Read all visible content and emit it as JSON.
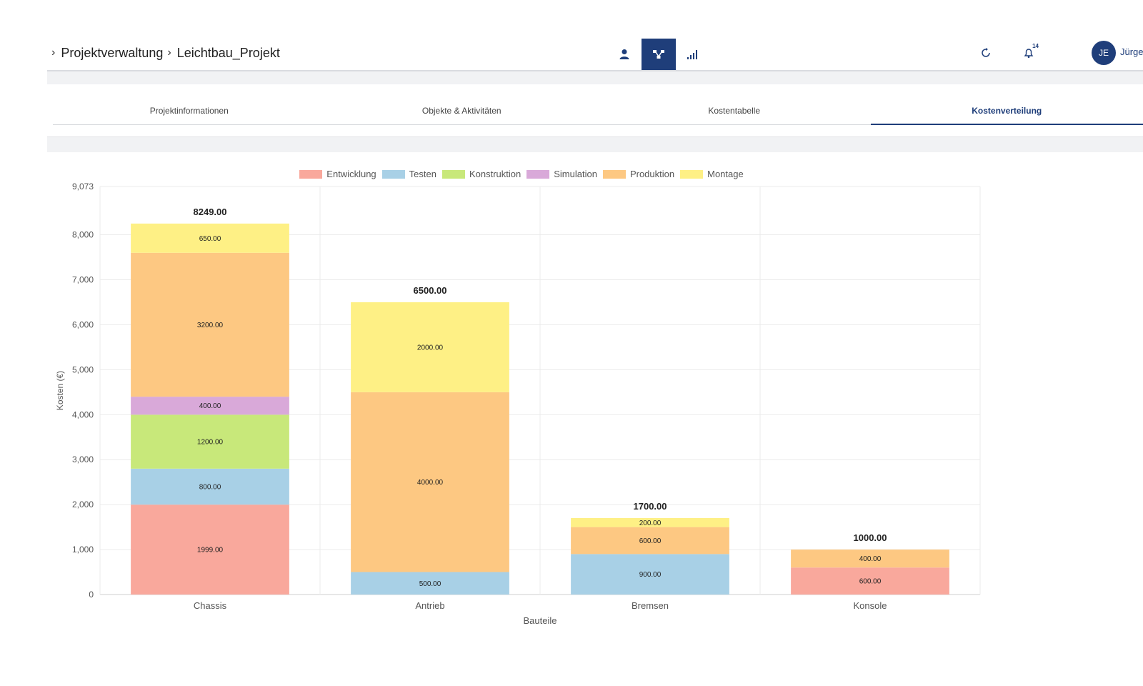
{
  "breadcrumb": {
    "items": [
      "Projektverwaltung",
      "Leichtbau_Projekt"
    ]
  },
  "header": {
    "badge_count": "14",
    "user_initials": "JE",
    "user_name": "Jürgen"
  },
  "tabs": [
    {
      "label": "Projektinformationen",
      "active": false
    },
    {
      "label": "Objekte & Aktivitäten",
      "active": false
    },
    {
      "label": "Kostentabelle",
      "active": false
    },
    {
      "label": "Kostenverteilung",
      "active": true
    }
  ],
  "colors": {
    "accent": "#1f3e7a"
  },
  "chart_data": {
    "type": "bar",
    "stacked": true,
    "xlabel": "Bauteile",
    "ylabel": "Kosten (€)",
    "ylim": [
      0,
      9073
    ],
    "yticks": [
      "0",
      "1,000",
      "2,000",
      "3,000",
      "4,000",
      "5,000",
      "6,000",
      "7,000",
      "8,000",
      "9,073"
    ],
    "categories": [
      "Chassis",
      "Antrieb",
      "Bremsen",
      "Konsole"
    ],
    "totals": [
      "8249.00",
      "6500.00",
      "1700.00",
      "1000.00"
    ],
    "legend_position": "top",
    "grid": true,
    "series": [
      {
        "name": "Entwicklung",
        "color": "#f9a89c",
        "values": [
          1999,
          0,
          0,
          600
        ]
      },
      {
        "name": "Testen",
        "color": "#a8d0e6",
        "values": [
          800,
          500,
          900,
          0
        ]
      },
      {
        "name": "Konstruktion",
        "color": "#c8e87a",
        "values": [
          1200,
          0,
          0,
          0
        ]
      },
      {
        "name": "Simulation",
        "color": "#d9a9d9",
        "values": [
          400,
          0,
          0,
          0
        ]
      },
      {
        "name": "Produktion",
        "color": "#fdc882",
        "values": [
          3200,
          4000,
          600,
          400
        ]
      },
      {
        "name": "Montage",
        "color": "#fef085",
        "values": [
          650,
          2000,
          200,
          0
        ]
      }
    ]
  }
}
